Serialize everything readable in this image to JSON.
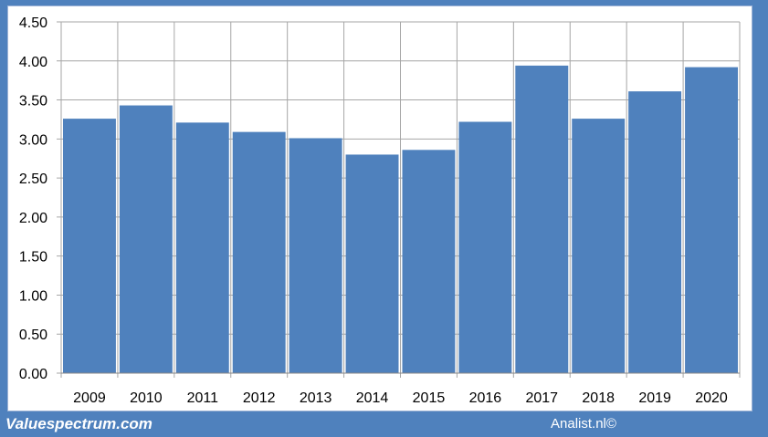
{
  "chart_data": {
    "type": "bar",
    "categories": [
      "2009",
      "2010",
      "2011",
      "2012",
      "2013",
      "2014",
      "2015",
      "2016",
      "2017",
      "2018",
      "2019",
      "2020"
    ],
    "values": [
      3.26,
      3.43,
      3.21,
      3.09,
      3.01,
      2.8,
      2.86,
      3.22,
      3.94,
      3.26,
      3.61,
      3.92
    ],
    "ylim": [
      0,
      4.5
    ],
    "yticks": [
      "0.00",
      "0.50",
      "1.00",
      "1.50",
      "2.00",
      "2.50",
      "3.00",
      "3.50",
      "4.00",
      "4.50"
    ],
    "grid": true,
    "bar_color": "#4f81bd"
  },
  "footer": {
    "left": "Valuespectrum.com",
    "right": "Analist.nl©"
  }
}
